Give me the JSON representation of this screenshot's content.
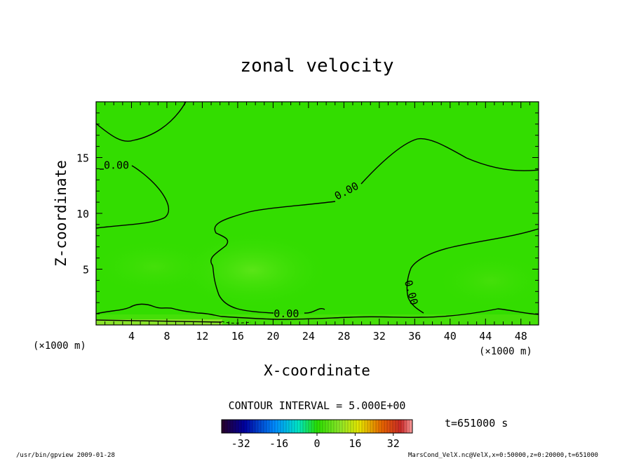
{
  "chart_data": {
    "type": "heatmap",
    "title": "zonal velocity",
    "xlabel": "X-coordinate",
    "ylabel": "Z-coordinate",
    "x_unit_left": "(×1000 m)",
    "x_unit_right": "(×1000 m)",
    "xlim": [
      0,
      50
    ],
    "ylim": [
      0,
      20
    ],
    "x_ticks": [
      4,
      8,
      12,
      16,
      20,
      24,
      28,
      32,
      36,
      40,
      44,
      48
    ],
    "y_ticks": [
      5,
      10,
      15
    ],
    "contour_label": "0.00",
    "contour_labels": [
      {
        "text": "0.00",
        "x": 2.3,
        "z": 14.3
      },
      {
        "text": "0.00",
        "x": 28.3,
        "z": 12.0
      },
      {
        "text": "0.00",
        "x": 21.5,
        "z": 1.0
      },
      {
        "text": "0.00",
        "x": 35.6,
        "z": 2.9
      }
    ],
    "contour_interval": "CONTOUR INTERVAL = 5.000E+00",
    "colorbar": {
      "range": [
        -40,
        40
      ],
      "tick_labels": [
        "-32",
        "-16",
        "0",
        "16",
        "32"
      ],
      "tick_values": [
        -32,
        -16,
        0,
        16,
        32
      ]
    },
    "time_label": "t=651000 s",
    "colors": {
      "field_main": "#33dd00",
      "field_light": "#55e20e",
      "field_bottom": "#88e22a"
    }
  },
  "footer": {
    "left": "/usr/bin/gpview  2009-01-28",
    "right": "MarsCond_VelX.nc@VelX,x=0:50000,z=0:20000,t=651000"
  }
}
